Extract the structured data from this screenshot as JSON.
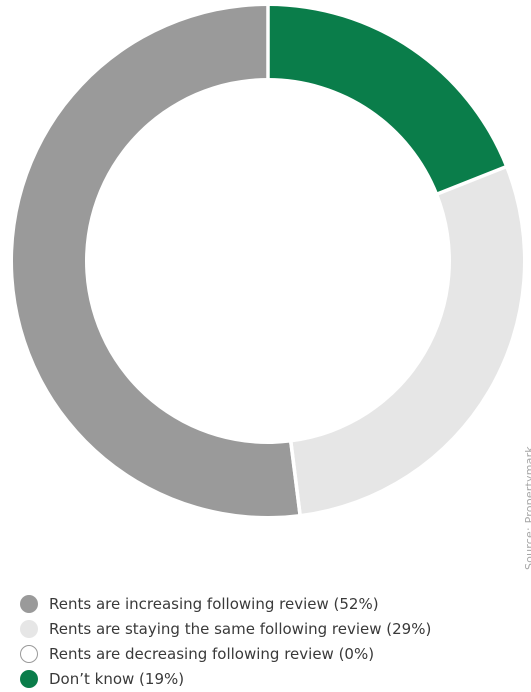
{
  "chart_data": {
    "type": "pie",
    "donut": true,
    "source": "Source: Propertymark",
    "slices": [
      {
        "label": "Don’t know (19%)",
        "value": 19,
        "color": "#0a7d4a",
        "outline": false
      },
      {
        "label": "Rents are staying the same following review (29%)",
        "value": 29,
        "color": "#e6e6e6",
        "outline": false
      },
      {
        "label": "Rents are decreasing following review (0%)",
        "value": 0,
        "color": "#ffffff",
        "outline": true
      },
      {
        "label": "Rents are increasing following review (52%)",
        "value": 52,
        "color": "#9a9a9a",
        "outline": false
      }
    ],
    "legend": [
      {
        "label": "Rents are increasing following review (52%)",
        "color": "#9a9a9a",
        "outline": false
      },
      {
        "label": "Rents are staying the same following review (29%)",
        "color": "#e6e6e6",
        "outline": false
      },
      {
        "label": "Rents are decreasing following review (0%)",
        "color": "#ffffff",
        "outline": true
      },
      {
        "label": "Don’t know (19%)",
        "color": "#0a7d4a",
        "outline": false
      }
    ]
  }
}
